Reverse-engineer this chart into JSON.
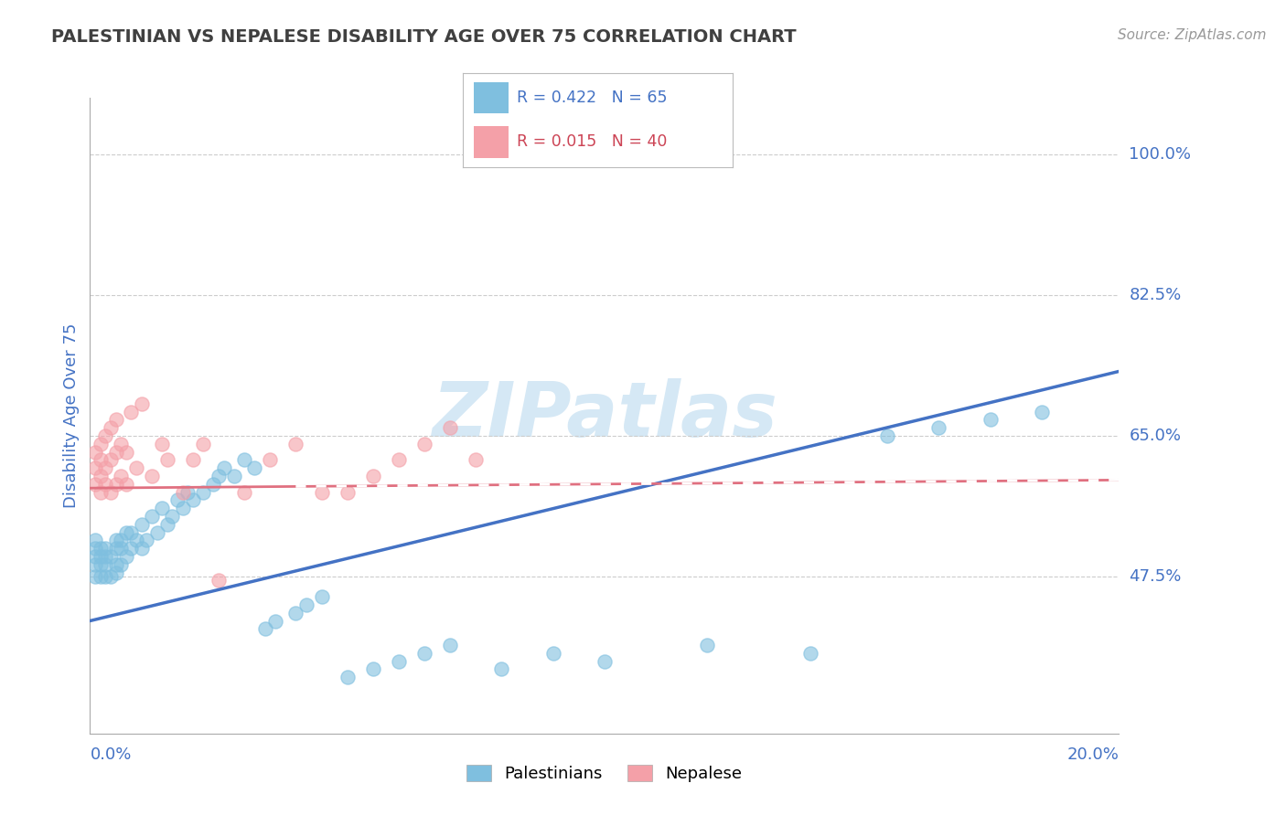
{
  "title": "PALESTINIAN VS NEPALESE DISABILITY AGE OVER 75 CORRELATION CHART",
  "source": "Source: ZipAtlas.com",
  "ylabel": "Disability Age Over 75",
  "yticks": [
    0.475,
    0.65,
    0.825,
    1.0
  ],
  "ytick_labels": [
    "47.5%",
    "65.0%",
    "82.5%",
    "100.0%"
  ],
  "xmin": 0.0,
  "xmax": 0.2,
  "ymin": 0.28,
  "ymax": 1.07,
  "pal_color": "#7fbfdf",
  "nep_color": "#f4a0a8",
  "trend_pal_color": "#4472c4",
  "trend_nep_color": "#e07080",
  "axis_label_color": "#4472c4",
  "grid_color": "#cccccc",
  "watermark_color": "#d5e8f5",
  "palestinians_x": [
    0.001,
    0.001,
    0.001,
    0.001,
    0.001,
    0.002,
    0.002,
    0.002,
    0.002,
    0.003,
    0.003,
    0.003,
    0.003,
    0.004,
    0.004,
    0.005,
    0.005,
    0.005,
    0.005,
    0.006,
    0.006,
    0.006,
    0.007,
    0.007,
    0.008,
    0.008,
    0.009,
    0.01,
    0.01,
    0.011,
    0.012,
    0.013,
    0.014,
    0.015,
    0.016,
    0.017,
    0.018,
    0.019,
    0.02,
    0.022,
    0.024,
    0.025,
    0.026,
    0.028,
    0.03,
    0.032,
    0.034,
    0.036,
    0.04,
    0.042,
    0.045,
    0.05,
    0.055,
    0.06,
    0.065,
    0.07,
    0.08,
    0.09,
    0.1,
    0.12,
    0.14,
    0.155,
    0.165,
    0.175,
    0.185
  ],
  "palestinians_y": [
    0.475,
    0.49,
    0.5,
    0.51,
    0.52,
    0.475,
    0.49,
    0.5,
    0.51,
    0.475,
    0.49,
    0.5,
    0.51,
    0.475,
    0.5,
    0.48,
    0.49,
    0.51,
    0.52,
    0.49,
    0.51,
    0.52,
    0.5,
    0.53,
    0.51,
    0.53,
    0.52,
    0.51,
    0.54,
    0.52,
    0.55,
    0.53,
    0.56,
    0.54,
    0.55,
    0.57,
    0.56,
    0.58,
    0.57,
    0.58,
    0.59,
    0.6,
    0.61,
    0.6,
    0.62,
    0.61,
    0.41,
    0.42,
    0.43,
    0.44,
    0.45,
    0.35,
    0.36,
    0.37,
    0.38,
    0.39,
    0.36,
    0.38,
    0.37,
    0.39,
    0.38,
    0.65,
    0.66,
    0.67,
    0.68
  ],
  "nepalese_x": [
    0.001,
    0.001,
    0.001,
    0.002,
    0.002,
    0.002,
    0.002,
    0.003,
    0.003,
    0.003,
    0.004,
    0.004,
    0.004,
    0.005,
    0.005,
    0.005,
    0.006,
    0.006,
    0.007,
    0.007,
    0.008,
    0.009,
    0.01,
    0.012,
    0.014,
    0.015,
    0.018,
    0.02,
    0.022,
    0.025,
    0.03,
    0.035,
    0.04,
    0.045,
    0.05,
    0.055,
    0.06,
    0.065,
    0.07,
    0.075
  ],
  "nepalese_y": [
    0.59,
    0.61,
    0.63,
    0.58,
    0.6,
    0.62,
    0.64,
    0.59,
    0.61,
    0.65,
    0.58,
    0.62,
    0.66,
    0.59,
    0.63,
    0.67,
    0.6,
    0.64,
    0.59,
    0.63,
    0.68,
    0.61,
    0.69,
    0.6,
    0.64,
    0.62,
    0.58,
    0.62,
    0.64,
    0.47,
    0.58,
    0.62,
    0.64,
    0.58,
    0.58,
    0.6,
    0.62,
    0.64,
    0.66,
    0.62
  ],
  "pal_trend_y0": 0.42,
  "pal_trend_y1": 0.73,
  "nep_trend_y0": 0.585,
  "nep_trend_y1": 0.595
}
